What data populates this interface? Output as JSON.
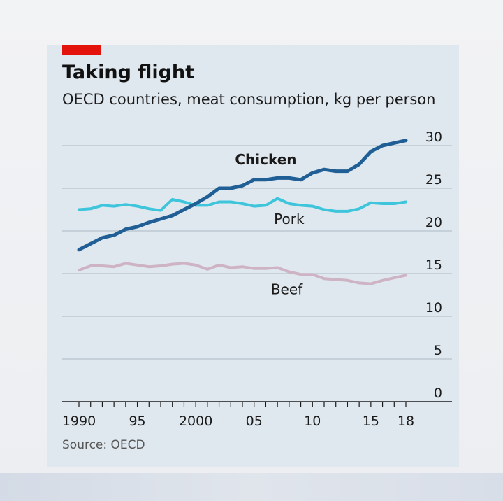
{
  "header": {
    "title": "Taking flight",
    "subtitle": "OECD countries, meat consumption, kg per person"
  },
  "footer": {
    "source": "Source: OECD"
  },
  "colors": {
    "accent": "#e3120b",
    "card": "#e0e8ef",
    "grid": "#b7c2cc",
    "axis": "#1a1a1a",
    "chicken": "#1f5f96",
    "pork": "#3ec5dc",
    "beef": "#cdb3c3"
  },
  "chart_data": {
    "type": "line",
    "title": "Taking flight",
    "subtitle": "OECD countries, meat consumption, kg per person",
    "xlabel": "",
    "ylabel": "kg per person",
    "xlim": [
      1990,
      2018
    ],
    "ylim": [
      0,
      30
    ],
    "grid": true,
    "y_ticks": [
      0,
      5,
      10,
      15,
      20,
      25,
      30
    ],
    "y_tick_labels": [
      "0",
      "5",
      "10",
      "15",
      "20",
      "25",
      "30"
    ],
    "x_ticks": [
      1990,
      1995,
      2000,
      2005,
      2010,
      2015,
      2018
    ],
    "x_tick_labels": [
      "1990",
      "95",
      "2000",
      "05",
      "10",
      "15",
      "18"
    ],
    "x": [
      1990,
      1991,
      1992,
      1993,
      1994,
      1995,
      1996,
      1997,
      1998,
      1999,
      2000,
      2001,
      2002,
      2003,
      2004,
      2005,
      2006,
      2007,
      2008,
      2009,
      2010,
      2011,
      2012,
      2013,
      2014,
      2015,
      2016,
      2017,
      2018
    ],
    "series": [
      {
        "name": "Chicken",
        "label": "Chicken",
        "color_key": "chicken",
        "label_x": 2006.0,
        "label_y": 27.8,
        "bold": true,
        "values": [
          17.8,
          18.5,
          19.2,
          19.5,
          20.2,
          20.5,
          21.0,
          21.4,
          21.8,
          22.5,
          23.2,
          24.0,
          25.0,
          25.0,
          25.3,
          26.0,
          26.0,
          26.2,
          26.2,
          26.0,
          26.8,
          27.2,
          27.0,
          27.0,
          27.8,
          29.3,
          30.0,
          30.3,
          30.6
        ]
      },
      {
        "name": "Pork",
        "label": "Pork",
        "color_key": "pork",
        "label_x": 2008.0,
        "label_y": 20.8,
        "bold": false,
        "values": [
          22.5,
          22.6,
          23.0,
          22.9,
          23.1,
          22.9,
          22.6,
          22.4,
          23.7,
          23.4,
          23.0,
          23.0,
          23.4,
          23.4,
          23.2,
          22.9,
          23.0,
          23.8,
          23.2,
          23.0,
          22.9,
          22.5,
          22.3,
          22.3,
          22.6,
          23.3,
          23.2,
          23.2,
          23.4
        ]
      },
      {
        "name": "Beef",
        "label": "Beef",
        "color_key": "beef",
        "label_x": 2007.8,
        "label_y": 12.6,
        "bold": false,
        "values": [
          15.4,
          15.9,
          15.9,
          15.8,
          16.2,
          16.0,
          15.8,
          15.9,
          16.1,
          16.2,
          16.0,
          15.5,
          16.0,
          15.7,
          15.8,
          15.6,
          15.6,
          15.7,
          15.2,
          14.9,
          14.9,
          14.4,
          14.3,
          14.2,
          13.9,
          13.8,
          14.2,
          14.5,
          14.8
        ]
      }
    ]
  }
}
